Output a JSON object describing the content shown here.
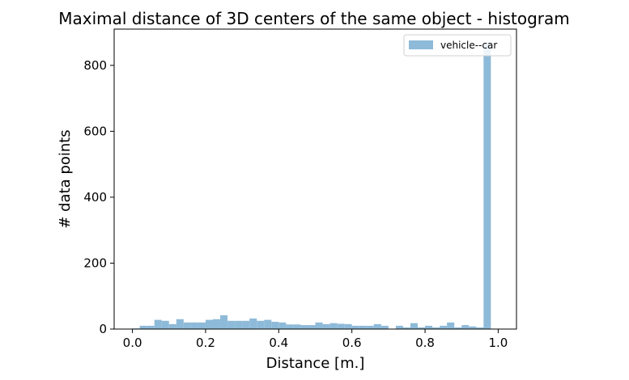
{
  "chart_data": {
    "type": "bar",
    "title": "Maximal distance of 3D centers of the same object - histogram",
    "xlabel": "Distance [m.]",
    "ylabel": "# data points",
    "xlim": [
      -0.05,
      1.05
    ],
    "ylim": [
      0,
      910
    ],
    "xticks": [
      "0.0",
      "0.2",
      "0.4",
      "0.6",
      "0.8",
      "1.0"
    ],
    "yticks": [
      "0",
      "200",
      "400",
      "600",
      "800"
    ],
    "bin_edges_start": 0.0,
    "bin_width": 0.02,
    "series": [
      {
        "name": "vehicle--car",
        "color": "#8ebad9",
        "values": [
          2,
          10,
          10,
          28,
          25,
          15,
          30,
          20,
          20,
          20,
          28,
          30,
          42,
          25,
          25,
          25,
          32,
          25,
          28,
          22,
          20,
          14,
          14,
          12,
          12,
          20,
          15,
          18,
          16,
          15,
          10,
          10,
          10,
          15,
          10,
          0,
          10,
          5,
          18,
          5,
          10,
          5,
          10,
          20,
          5,
          12,
          8,
          5,
          870,
          0
        ]
      }
    ],
    "legend_position": "top-right",
    "grid": false
  }
}
